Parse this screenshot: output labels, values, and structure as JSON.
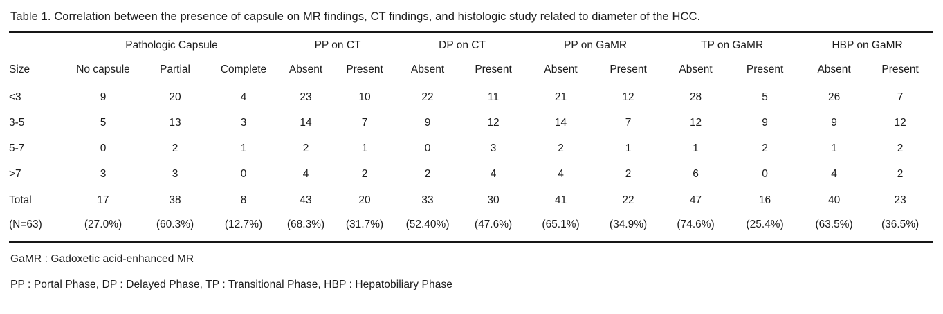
{
  "title": "Table 1. Correlation between the presence of capsule on MR findings, CT findings, and histologic study related to diameter of the HCC.",
  "table": {
    "row_header": "Size",
    "groups": [
      {
        "label": "Pathologic Capsule",
        "columns": [
          "No capsule",
          "Partial",
          "Complete"
        ]
      },
      {
        "label": "PP on CT",
        "columns": [
          "Absent",
          "Present"
        ]
      },
      {
        "label": "DP on CT",
        "columns": [
          "Absent",
          "Present"
        ]
      },
      {
        "label": "PP on GaMR",
        "columns": [
          "Absent",
          "Present"
        ]
      },
      {
        "label": "TP on GaMR",
        "columns": [
          "Absent",
          "Present"
        ]
      },
      {
        "label": "HBP on GaMR",
        "columns": [
          "Absent",
          "Present"
        ]
      }
    ],
    "rows": [
      {
        "label": "<3",
        "values": [
          "9",
          "20",
          "4",
          "23",
          "10",
          "22",
          "11",
          "21",
          "12",
          "28",
          "5",
          "26",
          "7"
        ]
      },
      {
        "label": "3-5",
        "values": [
          "5",
          "13",
          "3",
          "14",
          "7",
          "9",
          "12",
          "14",
          "7",
          "12",
          "9",
          "9",
          "12"
        ]
      },
      {
        "label": "5-7",
        "values": [
          "0",
          "2",
          "1",
          "2",
          "1",
          "0",
          "3",
          "2",
          "1",
          "1",
          "2",
          "1",
          "2"
        ]
      },
      {
        "label": ">7",
        "values": [
          "3",
          "3",
          "0",
          "4",
          "2",
          "2",
          "4",
          "4",
          "2",
          "6",
          "0",
          "4",
          "2"
        ]
      }
    ],
    "total_row": {
      "label": "Total",
      "values": [
        "17",
        "38",
        "8",
        "43",
        "20",
        "33",
        "30",
        "41",
        "22",
        "47",
        "16",
        "40",
        "23"
      ]
    },
    "percent_row": {
      "label": "(N=63)",
      "values": [
        "(27.0%)",
        "(60.3%)",
        "(12.7%)",
        "(68.3%)",
        "(31.7%)",
        "(52.40%)",
        "(47.6%)",
        "(65.1%)",
        "(34.9%)",
        "(74.6%)",
        "(25.4%)",
        "(63.5%)",
        "(36.5%)"
      ]
    }
  },
  "footnotes": [
    "GaMR : Gadoxetic acid-enhanced MR",
    "PP : Portal Phase, DP : Delayed Phase, TP : Transitional Phase, HBP : Hepatobiliary Phase"
  ],
  "colors": {
    "text": "#1c1c1c",
    "heavy_rule": "#161616",
    "light_rule": "#8a8a8a",
    "background": "#ffffff"
  }
}
